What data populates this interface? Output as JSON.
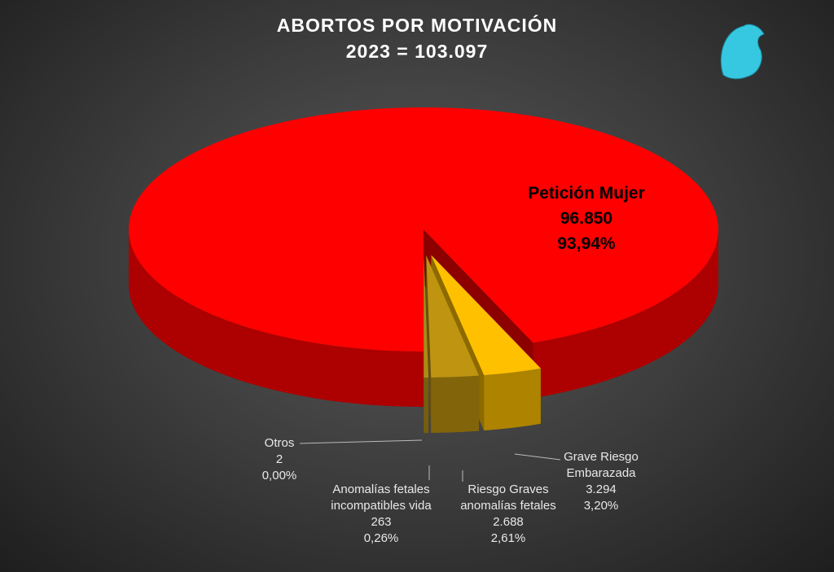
{
  "chart_data": {
    "type": "pie3d",
    "title": "ABORTOS POR MOTIVACIÓN",
    "subtitle": "2023 = 103.097",
    "categories": [
      "Petición Mujer",
      "Grave Riesgo Embarazada",
      "Riesgo Graves anomalías fetales",
      "Anomalías fetales incompatibles vida",
      "Otros"
    ],
    "values": [
      96850,
      3294,
      2688,
      263,
      2
    ],
    "value_labels": [
      "96.850",
      "3.294",
      "2.688",
      "263",
      "2"
    ],
    "percent_labels": [
      "93,94%",
      "3,20%",
      "2,61%",
      "0,26%",
      "0,00%"
    ],
    "colors": [
      "#ff0000",
      "#ffc000",
      "#bf9410",
      "#b08a10",
      "#a88410"
    ]
  }
}
